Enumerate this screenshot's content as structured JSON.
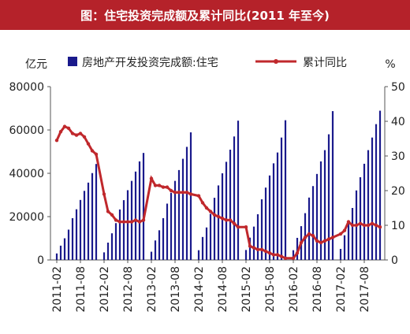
{
  "chart_data": {
    "type": "bar",
    "title": "图：住宅投资完成额及累计同比(2011 年至今)",
    "y_left_unit": "亿元",
    "y_right_unit": "%",
    "y_left_lim": [
      0,
      80000
    ],
    "y_right_lim": [
      0,
      50
    ],
    "y_left_ticks": [
      "0",
      "20000",
      "40000",
      "60000",
      "80000"
    ],
    "y_right_ticks": [
      "0",
      "10",
      "20",
      "30",
      "40",
      "50"
    ],
    "x_tick_labels": [
      "2011-02",
      "2011-08",
      "2012-02",
      "2012-08",
      "2013-02",
      "2013-08",
      "2014-02",
      "2014-08",
      "2015-02",
      "2015-08",
      "2016-02",
      "2016-08",
      "2017-02",
      "2017-08"
    ],
    "legend_position": "top",
    "colors": {
      "bars": "#1a1a8c",
      "line": "#c0282c",
      "title_bg": "#b5222a"
    },
    "series": [
      {
        "name": "房地产开发投资完成额:住宅",
        "type": "bar",
        "axis": "left",
        "categories": [
          "2011-02",
          "2011-03",
          "2011-04",
          "2011-05",
          "2011-06",
          "2011-07",
          "2011-08",
          "2011-09",
          "2011-10",
          "2011-11",
          "2011-12",
          "2012-02",
          "2012-03",
          "2012-04",
          "2012-05",
          "2012-06",
          "2012-07",
          "2012-08",
          "2012-09",
          "2012-10",
          "2012-11",
          "2012-12",
          "2013-02",
          "2013-03",
          "2013-04",
          "2013-05",
          "2013-06",
          "2013-07",
          "2013-08",
          "2013-09",
          "2013-10",
          "2013-11",
          "2013-12",
          "2014-02",
          "2014-03",
          "2014-04",
          "2014-05",
          "2014-06",
          "2014-07",
          "2014-08",
          "2014-09",
          "2014-10",
          "2014-11",
          "2014-12",
          "2015-02",
          "2015-03",
          "2015-04",
          "2015-05",
          "2015-06",
          "2015-07",
          "2015-08",
          "2015-09",
          "2015-10",
          "2015-11",
          "2015-12",
          "2016-02",
          "2016-03",
          "2016-04",
          "2016-05",
          "2016-06",
          "2016-07",
          "2016-08",
          "2016-09",
          "2016-10",
          "2016-11",
          "2016-12",
          "2017-02",
          "2017-03",
          "2017-04",
          "2017-05",
          "2017-06",
          "2017-07",
          "2017-08",
          "2017-09",
          "2017-10",
          "2017-11",
          "2017-12"
        ],
        "values": [
          3000,
          6600,
          10000,
          14000,
          19300,
          23400,
          27700,
          31900,
          35700,
          40100,
          44300,
          3500,
          8000,
          12300,
          17000,
          23300,
          27600,
          32200,
          36500,
          40800,
          45500,
          49400,
          3800,
          9000,
          13700,
          19300,
          26000,
          31000,
          36500,
          41500,
          46700,
          52200,
          58900,
          4500,
          10600,
          15000,
          21300,
          28700,
          34400,
          40000,
          45300,
          50900,
          57000,
          64300,
          4600,
          10300,
          15400,
          21100,
          28000,
          33400,
          39000,
          44600,
          49600,
          56500,
          64500,
          4500,
          10200,
          15600,
          21600,
          28800,
          34100,
          39700,
          45500,
          50700,
          58000,
          68700,
          5100,
          11400,
          17400,
          24000,
          32100,
          38200,
          44400,
          50700,
          56500,
          62700,
          68900
        ]
      },
      {
        "name": "累计同比",
        "type": "line",
        "axis": "right",
        "categories": [
          "2011-02",
          "2011-03",
          "2011-04",
          "2011-05",
          "2011-06",
          "2011-07",
          "2011-08",
          "2011-09",
          "2011-10",
          "2011-11",
          "2011-12",
          "2012-02",
          "2012-03",
          "2012-04",
          "2012-05",
          "2012-06",
          "2012-07",
          "2012-08",
          "2012-09",
          "2012-10",
          "2012-11",
          "2012-12",
          "2013-02",
          "2013-03",
          "2013-04",
          "2013-05",
          "2013-06",
          "2013-07",
          "2013-08",
          "2013-09",
          "2013-10",
          "2013-11",
          "2013-12",
          "2014-02",
          "2014-03",
          "2014-04",
          "2014-05",
          "2014-06",
          "2014-07",
          "2014-08",
          "2014-09",
          "2014-10",
          "2014-11",
          "2014-12",
          "2015-02",
          "2015-03",
          "2015-04",
          "2015-05",
          "2015-06",
          "2015-07",
          "2015-08",
          "2015-09",
          "2015-10",
          "2015-11",
          "2015-12",
          "2016-02",
          "2016-03",
          "2016-04",
          "2016-05",
          "2016-06",
          "2016-07",
          "2016-08",
          "2016-09",
          "2016-10",
          "2016-11",
          "2016-12",
          "2017-02",
          "2017-03",
          "2017-04",
          "2017-05",
          "2017-06",
          "2017-07",
          "2017-08",
          "2017-09",
          "2017-10",
          "2017-11",
          "2017-12"
        ],
        "values": [
          34.5,
          37.0,
          38.5,
          38.0,
          36.5,
          36.0,
          36.5,
          35.5,
          33.5,
          31.5,
          30.5,
          19.0,
          14.0,
          13.0,
          11.5,
          11.0,
          11.0,
          11.0,
          11.0,
          11.5,
          11.0,
          11.5,
          23.5,
          21.5,
          21.5,
          21.0,
          21.0,
          20.0,
          19.5,
          19.5,
          19.5,
          19.5,
          19.0,
          18.5,
          16.5,
          15.0,
          14.0,
          13.0,
          12.5,
          12.0,
          11.5,
          11.5,
          10.5,
          9.5,
          9.5,
          4.0,
          3.5,
          3.0,
          3.0,
          2.5,
          2.0,
          1.5,
          1.5,
          1.0,
          0.5,
          0.5,
          2.0,
          5.0,
          6.5,
          7.5,
          7.0,
          5.5,
          5.0,
          5.5,
          6.0,
          6.5,
          7.5,
          8.5,
          11.0,
          10.0,
          10.0,
          10.5,
          10.0,
          10.0,
          10.5,
          10.0,
          9.5
        ]
      }
    ]
  }
}
